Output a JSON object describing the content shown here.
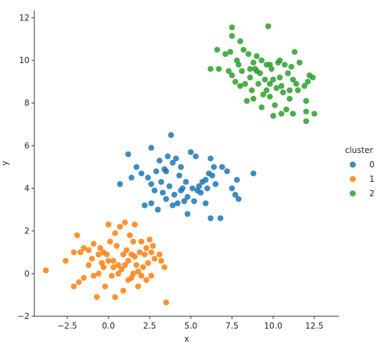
{
  "chart_data": {
    "type": "scatter",
    "xlabel": "x",
    "ylabel": "y",
    "xlim": [
      -4.5,
      14.0
    ],
    "ylim": [
      -2.0,
      12.35
    ],
    "x_ticks": [
      -2.5,
      0.0,
      2.5,
      5.0,
      7.5,
      10.0,
      12.5
    ],
    "x_tick_labels": [
      "−2.5",
      "0.0",
      "2.5",
      "5.0",
      "7.5",
      "10.0",
      "12.5"
    ],
    "y_ticks": [
      -2,
      0,
      2,
      4,
      6,
      8,
      10,
      12
    ],
    "y_tick_labels": [
      "−2",
      "0",
      "2",
      "4",
      "6",
      "8",
      "10",
      "12"
    ],
    "grid": false,
    "legend": {
      "title": "cluster",
      "placement": "right"
    },
    "series": [
      {
        "name": "0",
        "color": "#1f77b4",
        "points": [
          [
            1.2,
            5.6
          ],
          [
            2.6,
            5.9
          ],
          [
            3.8,
            6.5
          ],
          [
            5.0,
            5.7
          ],
          [
            5.3,
            5.5
          ],
          [
            6.2,
            5.4
          ],
          [
            6.4,
            5.0
          ],
          [
            6.9,
            5.0
          ],
          [
            7.2,
            4.8
          ],
          [
            7.8,
            4.4
          ],
          [
            8.8,
            4.7
          ],
          [
            6.0,
            4.0
          ],
          [
            6.5,
            4.2
          ],
          [
            7.5,
            4.0
          ],
          [
            7.7,
            3.7
          ],
          [
            7.9,
            3.5
          ],
          [
            6.2,
            2.6
          ],
          [
            6.8,
            2.6
          ],
          [
            4.8,
            2.8
          ],
          [
            3.0,
            3.0
          ],
          [
            2.2,
            3.2
          ],
          [
            2.6,
            3.3
          ],
          [
            3.5,
            3.5
          ],
          [
            4.2,
            3.3
          ],
          [
            4.6,
            3.4
          ],
          [
            5.2,
            3.4
          ],
          [
            5.6,
            3.8
          ],
          [
            5.9,
            3.3
          ],
          [
            0.7,
            4.2
          ],
          [
            1.4,
            4.5
          ],
          [
            1.7,
            5.0
          ],
          [
            2.0,
            4.7
          ],
          [
            2.4,
            4.5
          ],
          [
            2.6,
            4.2
          ],
          [
            2.9,
            4.8
          ],
          [
            3.1,
            5.3
          ],
          [
            3.4,
            4.9
          ],
          [
            3.6,
            5.5
          ],
          [
            3.9,
            5.2
          ],
          [
            4.1,
            5.4
          ],
          [
            4.3,
            4.6
          ],
          [
            4.5,
            4.0
          ],
          [
            4.7,
            4.3
          ],
          [
            5.1,
            4.0
          ],
          [
            5.4,
            3.9
          ],
          [
            5.7,
            4.3
          ],
          [
            5.9,
            4.4
          ],
          [
            6.1,
            4.7
          ],
          [
            3.3,
            3.8
          ],
          [
            3.7,
            4.1
          ],
          [
            4.0,
            3.7
          ],
          [
            4.4,
            3.9
          ],
          [
            4.8,
            3.6
          ],
          [
            3.2,
            4.3
          ],
          [
            2.8,
            3.9
          ],
          [
            3.9,
            3.2
          ],
          [
            4.4,
            5.0
          ],
          [
            5.5,
            4.1
          ],
          [
            6.3,
            4.6
          ],
          [
            3.5,
            4.8
          ]
        ]
      },
      {
        "name": "1",
        "color": "#ff7f0e",
        "points": [
          [
            -3.8,
            0.15
          ],
          [
            -2.6,
            0.6
          ],
          [
            -1.9,
            1.8
          ],
          [
            -2.1,
            1.0
          ],
          [
            -1.5,
            1.2
          ],
          [
            -1.2,
            1.1
          ],
          [
            -0.9,
            1.4
          ],
          [
            -0.6,
            0.9
          ],
          [
            -0.3,
            1.0
          ],
          [
            0.0,
            2.3
          ],
          [
            0.4,
            1.9
          ],
          [
            0.7,
            2.2
          ],
          [
            1.0,
            2.4
          ],
          [
            1.3,
            1.8
          ],
          [
            1.6,
            2.3
          ],
          [
            2.0,
            1.5
          ],
          [
            2.5,
            1.6
          ],
          [
            2.7,
            1.3
          ],
          [
            3.1,
            0.9
          ],
          [
            3.4,
            0.3
          ],
          [
            3.2,
            0.6
          ],
          [
            2.8,
            0.7
          ],
          [
            2.4,
            0.5
          ],
          [
            2.1,
            0.3
          ],
          [
            1.8,
            0.1
          ],
          [
            1.5,
            0.0
          ],
          [
            1.2,
            0.6
          ],
          [
            0.9,
            0.9
          ],
          [
            0.6,
            0.4
          ],
          [
            0.3,
            0.6
          ],
          [
            0.0,
            0.6
          ],
          [
            -0.3,
            0.3
          ],
          [
            -0.6,
            0.0
          ],
          [
            -0.9,
            -0.1
          ],
          [
            -1.2,
            0.4
          ],
          [
            -1.5,
            -0.2
          ],
          [
            -1.8,
            -0.4
          ],
          [
            -2.1,
            -0.6
          ],
          [
            -0.7,
            -1.1
          ],
          [
            0.4,
            -1.1
          ],
          [
            0.9,
            -0.8
          ],
          [
            1.4,
            -0.2
          ],
          [
            1.8,
            -0.6
          ],
          [
            2.3,
            -0.3
          ],
          [
            2.6,
            -0.1
          ],
          [
            -0.2,
            -0.6
          ],
          [
            0.2,
            -0.1
          ],
          [
            0.8,
            0.2
          ],
          [
            1.6,
            0.8
          ],
          [
            2.2,
            0.9
          ],
          [
            2.6,
            1.0
          ],
          [
            -1.0,
            0.7
          ],
          [
            -0.4,
            0.5
          ],
          [
            0.1,
            1.5
          ],
          [
            0.5,
            1.3
          ],
          [
            1.1,
            1.1
          ],
          [
            1.5,
            1.5
          ],
          [
            1.9,
            1.0
          ],
          [
            2.3,
            1.2
          ],
          [
            -0.1,
            0.9
          ],
          [
            0.6,
            0.0
          ],
          [
            1.2,
            -0.3
          ],
          [
            1.7,
            0.4
          ],
          [
            2.0,
            -0.1
          ],
          [
            3.5,
            -1.35
          ],
          [
            -0.5,
            1.2
          ],
          [
            -1.7,
            1.0
          ],
          [
            0.3,
            0.3
          ],
          [
            1.0,
            0.4
          ],
          [
            1.4,
            0.9
          ]
        ]
      },
      {
        "name": "2",
        "color": "#2ca02c",
        "points": [
          [
            7.5,
            11.55
          ],
          [
            7.5,
            11.15
          ],
          [
            8.0,
            10.9
          ],
          [
            9.7,
            11.6
          ],
          [
            6.6,
            10.5
          ],
          [
            7.1,
            10.3
          ],
          [
            7.4,
            10.4
          ],
          [
            7.8,
            10.0
          ],
          [
            8.2,
            10.5
          ],
          [
            8.5,
            10.3
          ],
          [
            8.8,
            9.9
          ],
          [
            9.0,
            10.2
          ],
          [
            9.3,
            10.0
          ],
          [
            9.6,
            9.8
          ],
          [
            9.9,
            9.6
          ],
          [
            10.3,
            9.9
          ],
          [
            10.7,
            9.8
          ],
          [
            11.1,
            9.7
          ],
          [
            11.3,
            10.4
          ],
          [
            11.6,
            9.9
          ],
          [
            12.2,
            9.3
          ],
          [
            12.4,
            9.2
          ],
          [
            12.1,
            9.0
          ],
          [
            11.9,
            8.8
          ],
          [
            11.4,
            8.9
          ],
          [
            11.0,
            8.6
          ],
          [
            10.6,
            8.5
          ],
          [
            10.2,
            8.7
          ],
          [
            9.8,
            8.9
          ],
          [
            9.5,
            9.1
          ],
          [
            9.2,
            9.4
          ],
          [
            8.9,
            9.6
          ],
          [
            8.6,
            9.2
          ],
          [
            8.3,
            8.9
          ],
          [
            8.0,
            8.8
          ],
          [
            7.7,
            9.0
          ],
          [
            7.5,
            9.3
          ],
          [
            7.3,
            9.5
          ],
          [
            6.7,
            9.6
          ],
          [
            6.2,
            9.6
          ],
          [
            8.4,
            8.1
          ],
          [
            8.8,
            8.2
          ],
          [
            9.3,
            7.8
          ],
          [
            9.8,
            8.3
          ],
          [
            10.1,
            7.9
          ],
          [
            10.5,
            7.5
          ],
          [
            10.8,
            7.7
          ],
          [
            11.2,
            7.5
          ],
          [
            12.0,
            8.1
          ],
          [
            12.0,
            7.6
          ],
          [
            12.0,
            7.15
          ],
          [
            12.5,
            7.5
          ],
          [
            10.0,
            7.4
          ],
          [
            9.6,
            8.6
          ],
          [
            10.4,
            9.2
          ],
          [
            10.9,
            9.4
          ],
          [
            8.1,
            9.5
          ],
          [
            8.7,
            8.6
          ],
          [
            9.1,
            8.9
          ],
          [
            9.4,
            8.4
          ],
          [
            10.0,
            9.1
          ],
          [
            10.5,
            8.8
          ],
          [
            11.2,
            9.1
          ],
          [
            7.9,
            9.8
          ],
          [
            8.6,
            9.6
          ],
          [
            9.0,
            9.5
          ],
          [
            9.8,
            9.8
          ],
          [
            10.4,
            10.0
          ],
          [
            11.0,
            8.2
          ],
          [
            11.5,
            8.6
          ]
        ]
      }
    ]
  }
}
